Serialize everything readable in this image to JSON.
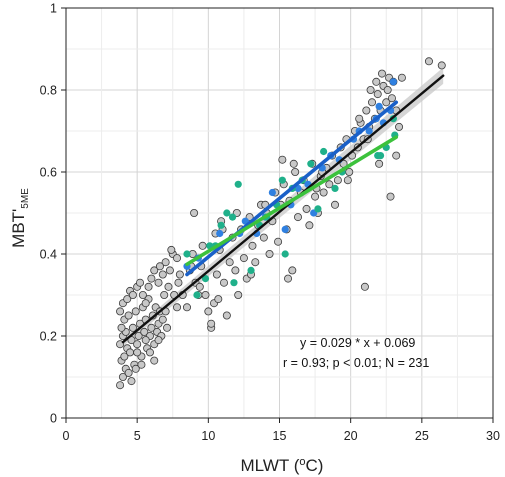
{
  "chart_data": {
    "type": "scatter",
    "title": "",
    "xlabel": {
      "main": "MLWT (",
      "sup": "o",
      "unit": "C)"
    },
    "ylabel": {
      "main": "MBT'",
      "sub": "5ME"
    },
    "xlim": [
      0,
      30
    ],
    "ylim": [
      0,
      1
    ],
    "xticks": [
      "0",
      "5",
      "10",
      "15",
      "20",
      "25",
      "30"
    ],
    "yticks": [
      "0",
      "0.2",
      "0.4",
      "0.6",
      "0.8",
      "1"
    ],
    "xtick_values": [
      0,
      5,
      10,
      15,
      20,
      25,
      30
    ],
    "ytick_values": [
      0,
      0.2,
      0.4,
      0.6,
      0.8,
      1
    ],
    "grid": true,
    "annotation": {
      "line1": "y = 0.029 * x + 0.069",
      "line2": "r = 0.93; p < 0.01; N = 231"
    },
    "colors": {
      "gray_point": "#c8c8c8",
      "blue_point": "#2f80e0",
      "teal_point": "#1fb08a",
      "black_line": "#111111",
      "blue_line": "#1a60c8",
      "green_line": "#3cc23c",
      "ci_band": "#c8c8c8"
    },
    "regression_lines": [
      {
        "name": "all",
        "color": "#111111",
        "x": [
          4,
          26.5
        ],
        "y": [
          0.185,
          0.835
        ]
      },
      {
        "name": "blue",
        "color": "#1a60c8",
        "x": [
          8.5,
          23.2
        ],
        "y": [
          0.35,
          0.77
        ]
      },
      {
        "name": "green",
        "color": "#3cc23c",
        "x": [
          8.5,
          23.2
        ],
        "y": [
          0.375,
          0.685
        ]
      }
    ],
    "ci_band": {
      "x": [
        4,
        26.5
      ],
      "y_low": [
        0.175,
        0.815
      ],
      "y_high": [
        0.195,
        0.855
      ]
    },
    "series": [
      {
        "color": "#c8c8c8",
        "points": [
          [
            3.8,
            0.08
          ],
          [
            4.0,
            0.1
          ],
          [
            4.2,
            0.12
          ],
          [
            3.9,
            0.14
          ],
          [
            4.1,
            0.15
          ],
          [
            4.3,
            0.17
          ],
          [
            3.8,
            0.18
          ],
          [
            4.0,
            0.2
          ],
          [
            4.2,
            0.21
          ],
          [
            3.9,
            0.22
          ],
          [
            4.1,
            0.24
          ],
          [
            4.4,
            0.25
          ],
          [
            3.8,
            0.26
          ],
          [
            4.0,
            0.28
          ],
          [
            4.3,
            0.29
          ],
          [
            4.5,
            0.16
          ],
          [
            4.6,
            0.19
          ],
          [
            4.7,
            0.22
          ],
          [
            4.8,
            0.13
          ],
          [
            4.9,
            0.26
          ],
          [
            5.0,
            0.18
          ],
          [
            5.1,
            0.2
          ],
          [
            5.2,
            0.23
          ],
          [
            5.3,
            0.15
          ],
          [
            5.4,
            0.27
          ],
          [
            5.5,
            0.21
          ],
          [
            5.6,
            0.24
          ],
          [
            5.7,
            0.17
          ],
          [
            5.8,
            0.29
          ],
          [
            5.9,
            0.2
          ],
          [
            4.5,
            0.31
          ],
          [
            4.7,
            0.3
          ],
          [
            5.0,
            0.32
          ],
          [
            5.2,
            0.33
          ],
          [
            5.4,
            0.3
          ],
          [
            5.6,
            0.28
          ],
          [
            5.8,
            0.32
          ],
          [
            6.0,
            0.22
          ],
          [
            6.1,
            0.25
          ],
          [
            6.2,
            0.18
          ],
          [
            6.3,
            0.27
          ],
          [
            6.4,
            0.21
          ],
          [
            6.5,
            0.23
          ],
          [
            6.6,
            0.26
          ],
          [
            6.7,
            0.2
          ],
          [
            6.8,
            0.24
          ],
          [
            6.9,
            0.3
          ],
          [
            7.0,
            0.26
          ],
          [
            7.1,
            0.22
          ],
          [
            7.2,
            0.32
          ],
          [
            6.0,
            0.34
          ],
          [
            6.2,
            0.36
          ],
          [
            6.5,
            0.33
          ],
          [
            6.8,
            0.35
          ],
          [
            7.0,
            0.38
          ],
          [
            7.3,
            0.36
          ],
          [
            7.5,
            0.4
          ],
          [
            7.6,
            0.3
          ],
          [
            7.8,
            0.27
          ],
          [
            7.9,
            0.33
          ],
          [
            5.0,
            0.16
          ],
          [
            5.3,
            0.13
          ],
          [
            5.6,
            0.19
          ],
          [
            5.9,
            0.16
          ],
          [
            6.2,
            0.14
          ],
          [
            6.5,
            0.19
          ],
          [
            4.4,
            0.11
          ],
          [
            4.6,
            0.09
          ],
          [
            4.9,
            0.12
          ],
          [
            7.4,
            0.41
          ],
          [
            8.0,
            0.35
          ],
          [
            8.2,
            0.3
          ],
          [
            8.5,
            0.27
          ],
          [
            8.7,
            0.36
          ],
          [
            8.9,
            0.4
          ],
          [
            9.1,
            0.33
          ],
          [
            9.3,
            0.3
          ],
          [
            9.5,
            0.37
          ],
          [
            9.6,
            0.42
          ],
          [
            9.8,
            0.3
          ],
          [
            10.0,
            0.26
          ],
          [
            10.2,
            0.22
          ],
          [
            10.4,
            0.28
          ],
          [
            10.6,
            0.35
          ],
          [
            10.8,
            0.41
          ],
          [
            10.9,
            0.48
          ],
          [
            11.1,
            0.33
          ],
          [
            11.3,
            0.25
          ],
          [
            11.5,
            0.38
          ],
          [
            11.7,
            0.44
          ],
          [
            11.9,
            0.36
          ],
          [
            12.1,
            0.3
          ],
          [
            12.3,
            0.46
          ],
          [
            12.5,
            0.39
          ],
          [
            12.7,
            0.34
          ],
          [
            12.9,
            0.49
          ],
          [
            13.1,
            0.42
          ],
          [
            13.3,
            0.38
          ],
          [
            13.5,
            0.47
          ],
          [
            13.7,
            0.52
          ],
          [
            13.9,
            0.44
          ],
          [
            14.1,
            0.5
          ],
          [
            14.3,
            0.4
          ],
          [
            14.5,
            0.48
          ],
          [
            14.7,
            0.55
          ],
          [
            14.9,
            0.43
          ],
          [
            15.1,
            0.52
          ],
          [
            15.3,
            0.57
          ],
          [
            15.5,
            0.46
          ],
          [
            15.7,
            0.53
          ],
          [
            15.9,
            0.36
          ],
          [
            16.1,
            0.6
          ],
          [
            16.3,
            0.49
          ],
          [
            16.5,
            0.55
          ],
          [
            16.7,
            0.58
          ],
          [
            16.9,
            0.51
          ],
          [
            17.1,
            0.47
          ],
          [
            17.3,
            0.62
          ],
          [
            17.5,
            0.54
          ],
          [
            17.7,
            0.5
          ],
          [
            17.9,
            0.59
          ],
          [
            18.1,
            0.55
          ],
          [
            18.3,
            0.61
          ],
          [
            18.5,
            0.57
          ],
          [
            18.7,
            0.64
          ],
          [
            18.9,
            0.52
          ],
          [
            19.1,
            0.58
          ],
          [
            19.3,
            0.66
          ],
          [
            19.5,
            0.62
          ],
          [
            19.7,
            0.68
          ],
          [
            19.9,
            0.6
          ],
          [
            20.1,
            0.64
          ],
          [
            20.3,
            0.7
          ],
          [
            20.5,
            0.66
          ],
          [
            20.7,
            0.72
          ],
          [
            20.9,
            0.68
          ],
          [
            21.1,
            0.75
          ],
          [
            21.3,
            0.71
          ],
          [
            21.5,
            0.77
          ],
          [
            21.7,
            0.73
          ],
          [
            21.9,
            0.79
          ],
          [
            22.1,
            0.75
          ],
          [
            22.3,
            0.81
          ],
          [
            22.5,
            0.77
          ],
          [
            22.7,
            0.83
          ],
          [
            22.9,
            0.78
          ],
          [
            21.4,
            0.8
          ],
          [
            21.8,
            0.82
          ],
          [
            22.2,
            0.84
          ],
          [
            22.6,
            0.8
          ],
          [
            23.0,
            0.82
          ],
          [
            23.2,
            0.75
          ],
          [
            23.4,
            0.71
          ],
          [
            23.6,
            0.83
          ],
          [
            22.0,
            0.62
          ],
          [
            23.2,
            0.64
          ],
          [
            22.8,
            0.54
          ],
          [
            21.0,
            0.32
          ],
          [
            25.5,
            0.87
          ],
          [
            26.4,
            0.86
          ],
          [
            9.0,
            0.5
          ],
          [
            10.5,
            0.45
          ],
          [
            11.0,
            0.46
          ],
          [
            12.0,
            0.5
          ],
          [
            15.2,
            0.63
          ],
          [
            15.6,
            0.34
          ],
          [
            16.0,
            0.62
          ],
          [
            17.6,
            0.56
          ],
          [
            18.0,
            0.6
          ],
          [
            19.8,
            0.58
          ],
          [
            20.6,
            0.73
          ],
          [
            21.2,
            0.68
          ],
          [
            14.0,
            0.52
          ],
          [
            13.0,
            0.35
          ],
          [
            10.2,
            0.23
          ],
          [
            10.7,
            0.29
          ],
          [
            9.4,
            0.32
          ],
          [
            8.8,
            0.37
          ],
          [
            7.8,
            0.39
          ],
          [
            6.6,
            0.37
          ]
        ]
      },
      {
        "color": "#2f80e0",
        "points": [
          [
            8.5,
            0.37
          ],
          [
            9.3,
            0.39
          ],
          [
            10.8,
            0.45
          ],
          [
            12.2,
            0.45
          ],
          [
            12.6,
            0.48
          ],
          [
            14.0,
            0.49
          ],
          [
            14.5,
            0.55
          ],
          [
            15.4,
            0.46
          ],
          [
            15.8,
            0.52
          ],
          [
            16.3,
            0.56
          ],
          [
            17.0,
            0.57
          ],
          [
            17.4,
            0.5
          ],
          [
            18.0,
            0.61
          ],
          [
            18.6,
            0.64
          ],
          [
            19.2,
            0.63
          ],
          [
            20.2,
            0.68
          ],
          [
            20.6,
            0.7
          ],
          [
            21.3,
            0.7
          ],
          [
            21.8,
            0.73
          ],
          [
            22.0,
            0.76
          ],
          [
            22.3,
            0.72
          ],
          [
            22.8,
            0.75
          ],
          [
            23.0,
            0.82
          ],
          [
            13.4,
            0.45
          ]
        ]
      },
      {
        "color": "#1fb08a",
        "points": [
          [
            8.5,
            0.4
          ],
          [
            9.2,
            0.3
          ],
          [
            9.8,
            0.34
          ],
          [
            10.5,
            0.42
          ],
          [
            10.9,
            0.47
          ],
          [
            11.3,
            0.5
          ],
          [
            11.8,
            0.33
          ],
          [
            12.1,
            0.57
          ],
          [
            13.0,
            0.36
          ],
          [
            13.6,
            0.47
          ],
          [
            14.1,
            0.49
          ],
          [
            14.8,
            0.52
          ],
          [
            15.2,
            0.58
          ],
          [
            15.4,
            0.4
          ],
          [
            15.9,
            0.56
          ],
          [
            16.6,
            0.58
          ],
          [
            17.2,
            0.62
          ],
          [
            17.7,
            0.51
          ],
          [
            18.1,
            0.65
          ],
          [
            18.9,
            0.56
          ],
          [
            19.4,
            0.6
          ],
          [
            21.9,
            0.64
          ],
          [
            22.1,
            0.64
          ],
          [
            22.5,
            0.66
          ],
          [
            23.0,
            0.73
          ],
          [
            23.1,
            0.69
          ],
          [
            10.1,
            0.42
          ],
          [
            11.7,
            0.49
          ]
        ]
      }
    ]
  }
}
